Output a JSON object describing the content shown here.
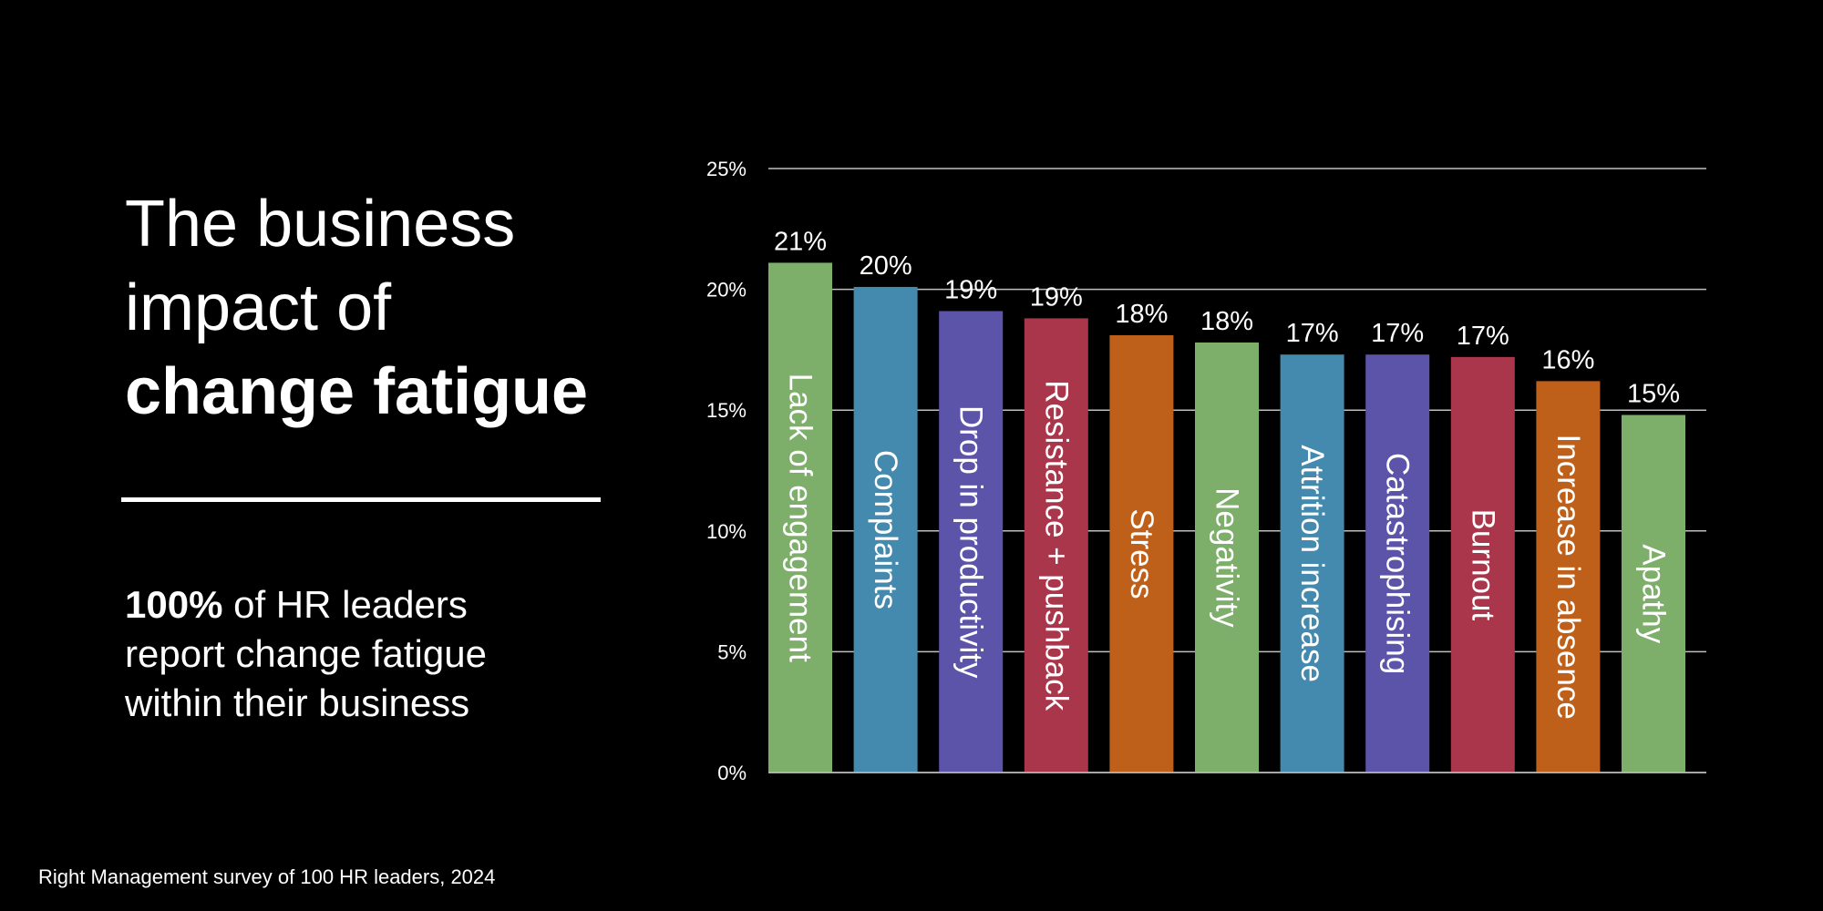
{
  "slide": {
    "title_line1": "The business",
    "title_line2": "impact of",
    "title_line3": "change fatigue",
    "stat_value": "100%",
    "stat_line1_rest": " of HR leaders",
    "stat_line2": "report change fatigue",
    "stat_line3": "within their business",
    "source": "Right Management survey of 100 HR leaders, 2024"
  },
  "chart_data": {
    "type": "bar",
    "title": "",
    "xlabel": "",
    "ylabel": "",
    "ylim": [
      0,
      25
    ],
    "y_ticks": [
      0,
      5,
      10,
      15,
      20,
      25
    ],
    "y_tick_labels": [
      "0%",
      "5%",
      "10%",
      "15%",
      "20%",
      "25%"
    ],
    "grid": true,
    "categories": [
      "Lack of engagement",
      "Complaints",
      "Drop in productivity",
      "Resistance + pushback",
      "Stress",
      "Negativity",
      "Attrition increase",
      "Catastrophising",
      "Burnout",
      "Increase in absence",
      "Apathy"
    ],
    "values": [
      21.1,
      20.1,
      19.1,
      18.8,
      18.1,
      17.8,
      17.3,
      17.3,
      17.2,
      16.2,
      14.8
    ],
    "data_labels": [
      "21%",
      "20%",
      "19%",
      "19%",
      "18%",
      "18%",
      "17%",
      "17%",
      "17%",
      "16%",
      "15%"
    ],
    "colors": [
      "#7DAE6A",
      "#438AAE",
      "#5B54A8",
      "#A9364A",
      "#BE6019",
      "#7DAE6A",
      "#438AAE",
      "#5B54A8",
      "#A9364A",
      "#BE6019",
      "#7DAE6A"
    ],
    "gridline_color": "#bfbfbf",
    "label_color": "#ffffff"
  }
}
